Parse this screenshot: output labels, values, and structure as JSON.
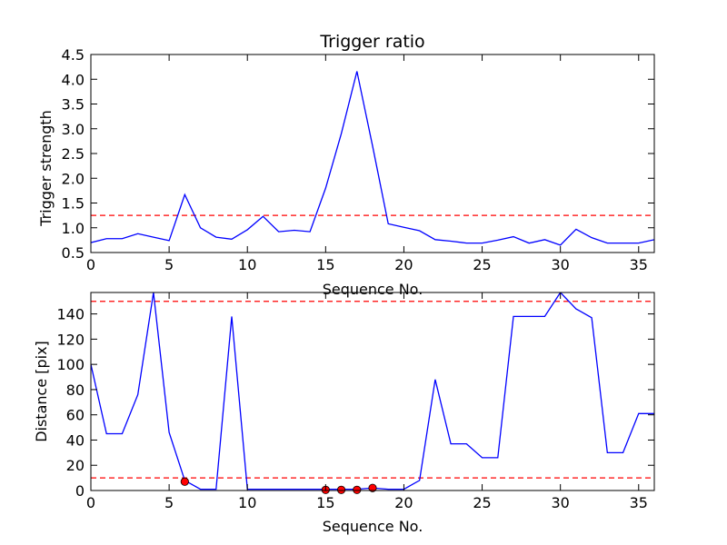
{
  "chart_data": [
    {
      "type": "line",
      "title": "Trigger ratio",
      "xlabel": "Sequence No.",
      "ylabel": "Trigger strength",
      "xlim": [
        0,
        36
      ],
      "ylim": [
        0.5,
        4.5
      ],
      "xticks": [
        "0",
        "5",
        "10",
        "15",
        "20",
        "25",
        "30",
        "35"
      ],
      "yticks": [
        "0.5",
        "1.0",
        "1.5",
        "2.0",
        "2.5",
        "3.0",
        "3.5",
        "4.0",
        "4.5"
      ],
      "grid": false,
      "series": [
        {
          "color": "#0000ff",
          "x": [
            0,
            1,
            2,
            3,
            4,
            5,
            6,
            7,
            8,
            9,
            10,
            11,
            12,
            13,
            14,
            15,
            16,
            17,
            18,
            19,
            20,
            21,
            22,
            23,
            24,
            25,
            26,
            27,
            28,
            29,
            30,
            31,
            32,
            33,
            34,
            35,
            36
          ],
          "values": [
            0.7,
            0.78,
            0.78,
            0.88,
            0.81,
            0.74,
            1.67,
            1.0,
            0.81,
            0.77,
            0.96,
            1.23,
            0.92,
            0.95,
            0.92,
            1.8,
            2.9,
            4.16,
            2.65,
            1.08,
            1.01,
            0.94,
            0.76,
            0.73,
            0.69,
            0.69,
            0.75,
            0.82,
            0.69,
            0.76,
            0.65,
            0.97,
            0.8,
            0.69,
            0.69,
            0.69,
            0.76
          ]
        }
      ],
      "reference_lines": [
        {
          "y": 1.25,
          "color": "#ff0000",
          "style": "dashed"
        }
      ]
    },
    {
      "type": "line",
      "title": "",
      "xlabel": "Sequence No.",
      "ylabel": "Distance [pix]",
      "xlim": [
        0,
        36
      ],
      "ylim": [
        0,
        157
      ],
      "xticks": [
        "0",
        "5",
        "10",
        "15",
        "20",
        "25",
        "30",
        "35"
      ],
      "yticks": [
        "0",
        "20",
        "40",
        "60",
        "80",
        "100",
        "120",
        "140"
      ],
      "grid": false,
      "series": [
        {
          "color": "#0000ff",
          "x": [
            0,
            1,
            2,
            3,
            4,
            5,
            6,
            7,
            8,
            9,
            10,
            11,
            12,
            13,
            14,
            15,
            16,
            17,
            18,
            19,
            20,
            21,
            22,
            23,
            24,
            25,
            26,
            27,
            28,
            29,
            30,
            31,
            32,
            33,
            34,
            35,
            36
          ],
          "values": [
            100,
            45,
            45,
            76,
            157,
            46,
            8,
            1,
            1,
            138,
            1,
            1,
            1,
            1,
            1,
            1,
            1,
            1,
            2,
            1,
            1,
            8,
            88,
            37,
            37,
            26,
            26,
            138,
            138,
            138,
            157,
            144,
            137,
            30,
            30,
            61,
            61
          ]
        }
      ],
      "reference_lines": [
        {
          "y": 150,
          "color": "#ff0000",
          "style": "dashed"
        },
        {
          "y": 10,
          "color": "#ff0000",
          "style": "dashed"
        }
      ],
      "markers": {
        "color": "#ff0000",
        "x": [
          6,
          15,
          16,
          17,
          18
        ],
        "y": [
          7,
          0.5,
          0.5,
          0.5,
          2
        ]
      }
    }
  ]
}
